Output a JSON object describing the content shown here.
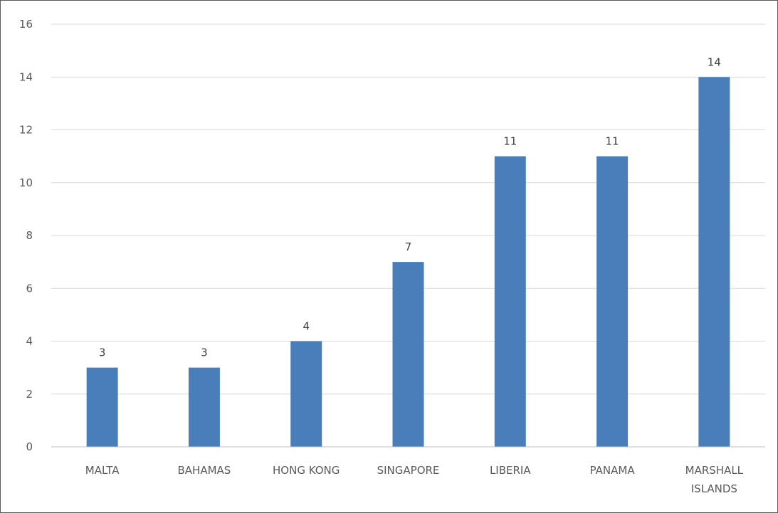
{
  "chart_data": {
    "type": "bar",
    "title": "",
    "xlabel": "",
    "ylabel": "",
    "categories": [
      "MALTA",
      "BAHAMAS",
      "HONG KONG",
      "SINGAPORE",
      "LIBERIA",
      "PANAMA",
      "MARSHALL ISLANDS"
    ],
    "values": [
      3,
      3,
      4,
      7,
      11,
      11,
      14
    ],
    "ylim": [
      0,
      16
    ],
    "yticks": [
      0,
      2,
      4,
      6,
      8,
      10,
      12,
      14,
      16
    ],
    "grid": true,
    "legend": "none",
    "data_labels": true,
    "colors": {
      "bar": "#4a7ebb",
      "grid": "#d9d9d9",
      "axis": "#bfbfbf",
      "text": "#595959"
    }
  }
}
